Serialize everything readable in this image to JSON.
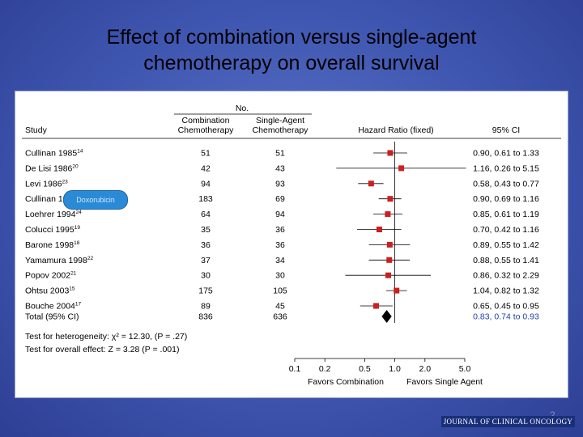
{
  "title_line1": "Effect of combination versus single-agent",
  "title_line2": "chemotherapy on overall survival",
  "bubble_text": "Doxorubicin",
  "page_number": "2",
  "journal": "JOURNAL OF CLINICAL ONCOLOGY",
  "headers": {
    "no": "No.",
    "study": "Study",
    "combination": [
      "Combination",
      "Chemotherapy"
    ],
    "single": [
      "Single-Agent",
      "Chemotherapy"
    ],
    "hr": "Hazard Ratio (fixed)",
    "ci": "95% CI"
  },
  "chart_data": {
    "type": "forest",
    "x_scale": "log",
    "xlim": [
      0.1,
      5.0
    ],
    "x_ticks": [
      "0.1",
      "0.2",
      "0.5",
      "1.0",
      "2.0",
      "5.0"
    ],
    "x_tick_values": [
      0.1,
      0.2,
      0.5,
      1.0,
      2.0,
      5.0
    ],
    "favors_left": "Favors Combination",
    "favors_right": "Favors Single Agent",
    "reference_line": 1.0,
    "studies": [
      {
        "name": "Cullinan 1985",
        "ref": "14",
        "comb": "51",
        "single": "51",
        "hr": 0.9,
        "lo": 0.61,
        "hi": 1.33,
        "ci_text": "0.90, 0.61 to 1.33"
      },
      {
        "name": "De Lisi 1986",
        "ref": "20",
        "comb": "42",
        "single": "43",
        "hr": 1.16,
        "lo": 0.26,
        "hi": 5.15,
        "ci_text": "1.16, 0.26 to 5.15"
      },
      {
        "name": "Levi 1986",
        "ref": "23",
        "comb": "94",
        "single": "93",
        "hr": 0.58,
        "lo": 0.43,
        "hi": 0.77,
        "ci_text": "0.58, 0.43 to 0.77"
      },
      {
        "name": "Cullinan 1994",
        "ref": "13",
        "comb": "183",
        "single": "69",
        "hr": 0.9,
        "lo": 0.69,
        "hi": 1.16,
        "ci_text": "0.90, 0.69 to 1.16"
      },
      {
        "name": "Loehrer 1994",
        "ref": "24",
        "comb": "64",
        "single": "94",
        "hr": 0.85,
        "lo": 0.61,
        "hi": 1.19,
        "ci_text": "0.85, 0.61 to 1.19"
      },
      {
        "name": "Colucci 1995",
        "ref": "19",
        "comb": "35",
        "single": "36",
        "hr": 0.7,
        "lo": 0.42,
        "hi": 1.16,
        "ci_text": "0.70, 0.42 to 1.16"
      },
      {
        "name": "Barone 1998",
        "ref": "18",
        "comb": "36",
        "single": "36",
        "hr": 0.89,
        "lo": 0.55,
        "hi": 1.42,
        "ci_text": "0.89, 0.55 to 1.42"
      },
      {
        "name": "Yamamura 1998",
        "ref": "22",
        "comb": "37",
        "single": "34",
        "hr": 0.88,
        "lo": 0.55,
        "hi": 1.41,
        "ci_text": "0.88, 0.55 to 1.41"
      },
      {
        "name": "Popov 2002",
        "ref": "21",
        "comb": "30",
        "single": "30",
        "hr": 0.86,
        "lo": 0.32,
        "hi": 2.29,
        "ci_text": "0.86, 0.32 to 2.29"
      },
      {
        "name": "Ohtsu 2003",
        "ref": "15",
        "comb": "175",
        "single": "105",
        "hr": 1.04,
        "lo": 0.82,
        "hi": 1.32,
        "ci_text": "1.04, 0.82 to 1.32"
      },
      {
        "name": "Bouche 2004",
        "ref": "17",
        "comb": "89",
        "single": "45",
        "hr": 0.65,
        "lo": 0.45,
        "hi": 0.95,
        "ci_text": "0.65, 0.45 to 0.95"
      }
    ],
    "total": {
      "name": "Total (95% CI)",
      "comb": "836",
      "single": "636",
      "hr": 0.83,
      "lo": 0.74,
      "hi": 0.93,
      "ci_text": "0.83, 0.74 to 0.93"
    },
    "heterogeneity_text": "Test for heterogeneity: χ² = 12.30, (P = .27)",
    "overall_effect_text": "Test for overall effect: Z = 3.28 (P = .001)",
    "colors": {
      "marker": "#cc1f1f",
      "total_ci": "#1f3fa8",
      "line": "#000000"
    }
  }
}
